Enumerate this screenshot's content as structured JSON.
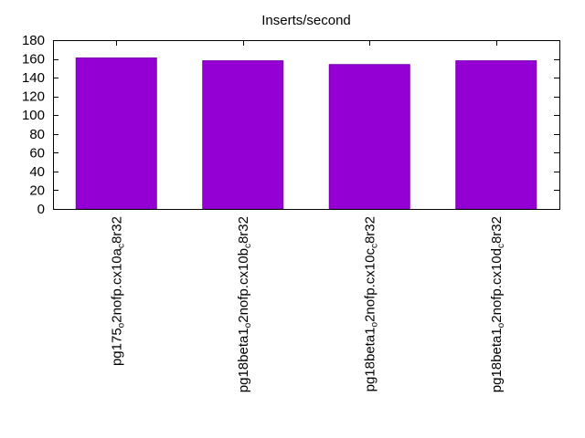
{
  "chart_data": {
    "type": "bar",
    "title": "Inserts/second",
    "xlabel": "",
    "ylabel": "",
    "ylim": [
      0,
      180
    ],
    "yticks": [
      0,
      20,
      40,
      60,
      80,
      100,
      120,
      140,
      160,
      180
    ],
    "grid": false,
    "legend": "none",
    "bar_color": "#9400d3",
    "categories": [
      {
        "label": "pg175_o2nofp.cx10a_c8r32",
        "parts": [
          {
            "t": "pg175",
            "sub": false
          },
          {
            "t": "o",
            "sub": true
          },
          {
            "t": "2nofp.cx10a",
            "sub": false
          },
          {
            "t": "c",
            "sub": true
          },
          {
            "t": "8r32",
            "sub": false
          }
        ]
      },
      {
        "label": "pg18beta1_o2nofp.cx10b_c8r32",
        "parts": [
          {
            "t": "pg18beta1",
            "sub": false
          },
          {
            "t": "o",
            "sub": true
          },
          {
            "t": "2nofp.cx10b",
            "sub": false
          },
          {
            "t": "c",
            "sub": true
          },
          {
            "t": "8r32",
            "sub": false
          }
        ]
      },
      {
        "label": "pg18beta1_o2nofp.cx10c_c8r32",
        "parts": [
          {
            "t": "pg18beta1",
            "sub": false
          },
          {
            "t": "o",
            "sub": true
          },
          {
            "t": "2nofp.cx10c",
            "sub": false
          },
          {
            "t": "c",
            "sub": true
          },
          {
            "t": "8r32",
            "sub": false
          }
        ]
      },
      {
        "label": "pg18beta1_o2nofp.cx10d_c8r32",
        "parts": [
          {
            "t": "pg18beta1",
            "sub": false
          },
          {
            "t": "o",
            "sub": true
          },
          {
            "t": "2nofp.cx10d",
            "sub": false
          },
          {
            "t": "c",
            "sub": true
          },
          {
            "t": "8r32",
            "sub": false
          }
        ]
      }
    ],
    "values": [
      161,
      158,
      154,
      158
    ]
  }
}
